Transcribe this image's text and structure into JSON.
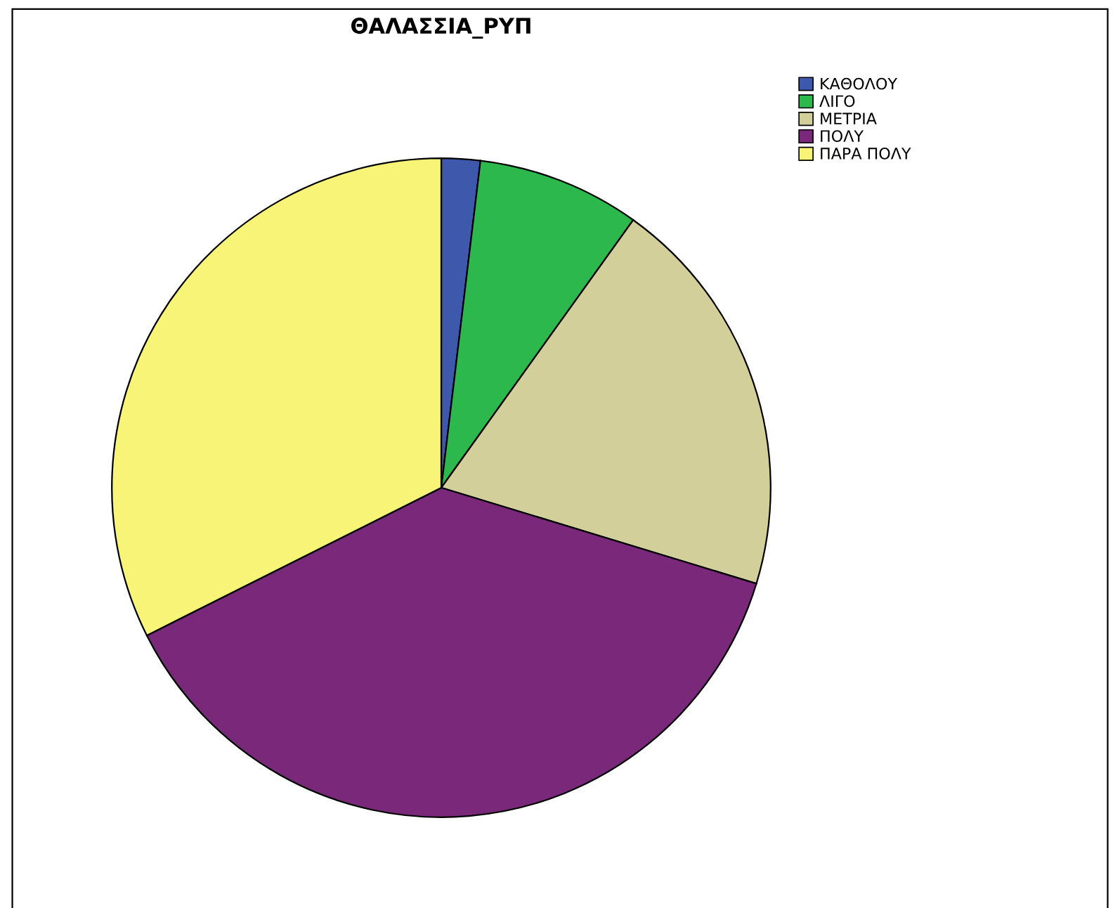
{
  "chart_data": {
    "type": "pie",
    "title": "ΘΑΛΑΣΣΙΑ_ΡΥΠ",
    "categories": [
      "ΚΑΘΟΛΟΥ",
      "ΛΙΓΟ",
      "ΜΕΤΡΙΑ",
      "ΠΟΛΥ",
      "ΠΑΡΑ ΠΟΛΥ"
    ],
    "values": [
      1.9,
      8.0,
      19.8,
      37.9,
      32.4
    ],
    "colors": [
      "#3e58ac",
      "#2db84d",
      "#d2cf9b",
      "#79287a",
      "#f8f477"
    ],
    "legend": "top right"
  }
}
